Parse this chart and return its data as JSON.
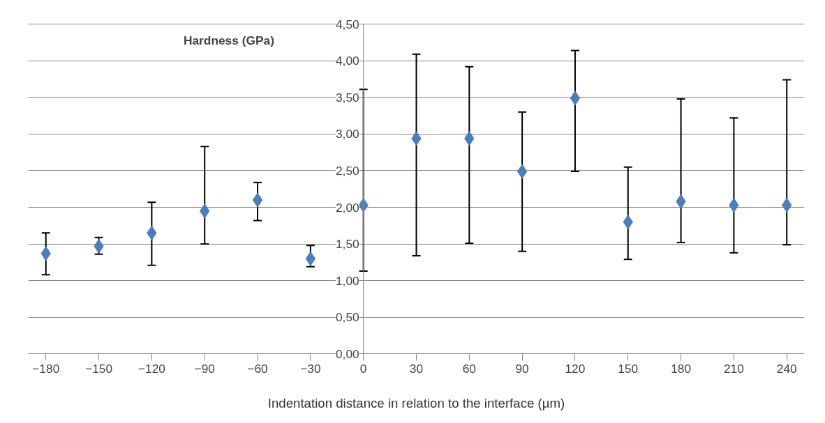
{
  "chart_data": {
    "type": "scatter",
    "xlabel": "Indentation distance in relation to the interface (µm)",
    "ylabel": "Hardness (GPa)",
    "x": [
      -180,
      -150,
      -120,
      -90,
      -60,
      -30,
      0,
      30,
      60,
      90,
      120,
      150,
      180,
      210,
      240
    ],
    "values": [
      1.37,
      1.47,
      1.65,
      1.95,
      2.1,
      1.3,
      2.03,
      2.94,
      2.94,
      2.49,
      3.49,
      1.8,
      2.08,
      2.03,
      2.03
    ],
    "errors": [
      [
        1.08,
        1.65
      ],
      [
        1.36,
        1.59
      ],
      [
        1.21,
        2.07
      ],
      [
        1.5,
        2.83
      ],
      [
        1.82,
        2.34
      ],
      [
        1.19,
        1.48
      ],
      [
        1.13,
        3.61
      ],
      [
        1.34,
        4.09
      ],
      [
        1.51,
        3.92
      ],
      [
        1.4,
        3.3
      ],
      [
        2.49,
        4.14
      ],
      [
        1.29,
        2.55
      ],
      [
        1.52,
        3.48
      ],
      [
        1.38,
        3.22
      ],
      [
        1.49,
        3.74
      ]
    ],
    "color": "#4a7ebf",
    "marker": "diamond",
    "xlim": [
      -190,
      250
    ],
    "xticks": [
      -180,
      -150,
      -120,
      -90,
      -60,
      -30,
      0,
      30,
      60,
      90,
      120,
      150,
      180,
      210,
      240
    ],
    "ylim": [
      0,
      4.5
    ],
    "yticks": [
      {
        "value": 0,
        "label": "0,00"
      },
      {
        "value": 0.5,
        "label": "0,50"
      },
      {
        "value": 1,
        "label": "1,00"
      },
      {
        "value": 1.5,
        "label": "1,50"
      },
      {
        "value": 2,
        "label": "2,00"
      },
      {
        "value": 2.5,
        "label": "2,50"
      },
      {
        "value": 3,
        "label": "3,00"
      },
      {
        "value": 3.5,
        "label": "3,50"
      },
      {
        "value": 4,
        "label": "4,00"
      },
      {
        "value": 4.5,
        "label": "4,50"
      }
    ],
    "grid": "y"
  }
}
